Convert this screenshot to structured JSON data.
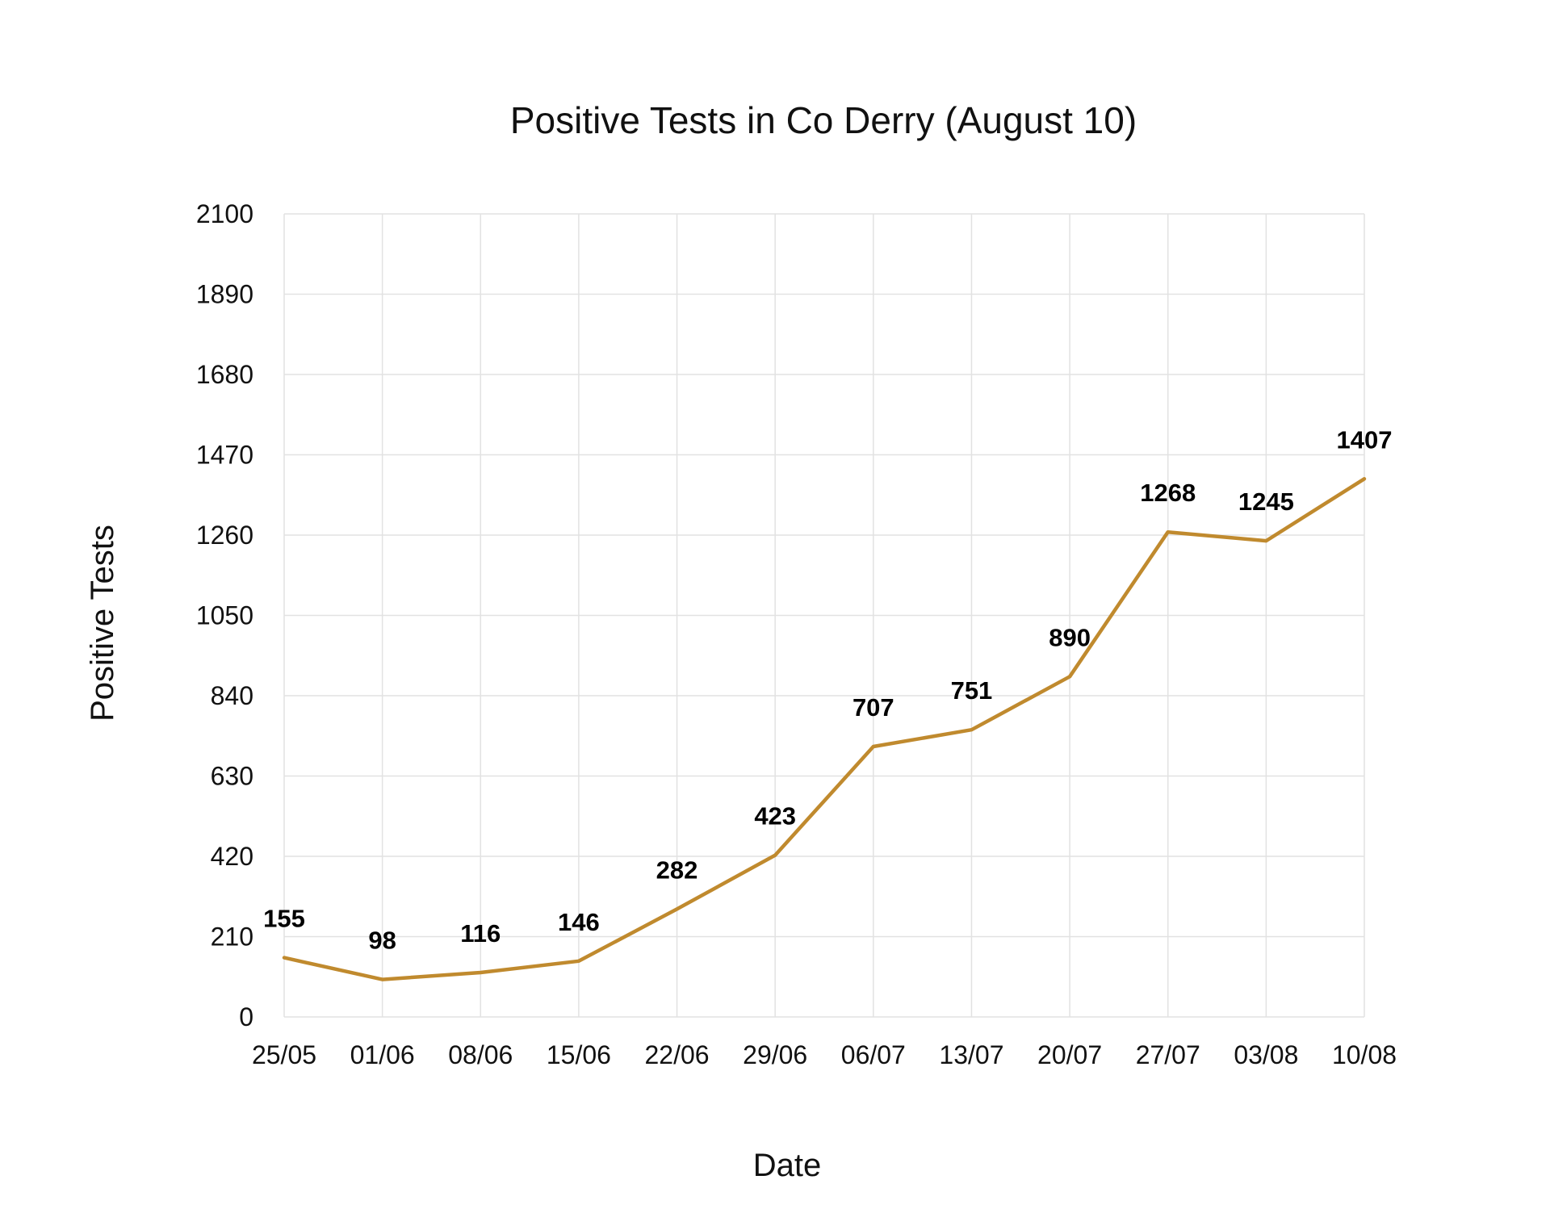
{
  "chart_data": {
    "type": "line",
    "title": "Positive Tests in Co Derry (August 10)",
    "xlabel": "Date",
    "ylabel": "Positive Tests",
    "categories": [
      "25/05",
      "01/06",
      "08/06",
      "15/06",
      "22/06",
      "29/06",
      "06/07",
      "13/07",
      "20/07",
      "27/07",
      "03/08",
      "10/08"
    ],
    "series": [
      {
        "values": [
          155,
          98,
          116,
          146,
          282,
          423,
          707,
          751,
          890,
          1268,
          1245,
          1407
        ],
        "color": "#C08A2E"
      }
    ],
    "data_labels": [
      "155",
      "98",
      "116",
      "146",
      "282",
      "423",
      "707",
      "751",
      "890",
      "1268",
      "1245",
      "1407"
    ],
    "ylim": [
      0,
      2100
    ],
    "yticks": [
      0,
      210,
      420,
      630,
      840,
      1050,
      1260,
      1470,
      1680,
      1890,
      2100
    ],
    "ytick_labels": [
      "0",
      "210",
      "420",
      "630",
      "840",
      "1050",
      "1260",
      "1470",
      "1680",
      "1890",
      "2100"
    ],
    "grid": true,
    "legend": false
  }
}
